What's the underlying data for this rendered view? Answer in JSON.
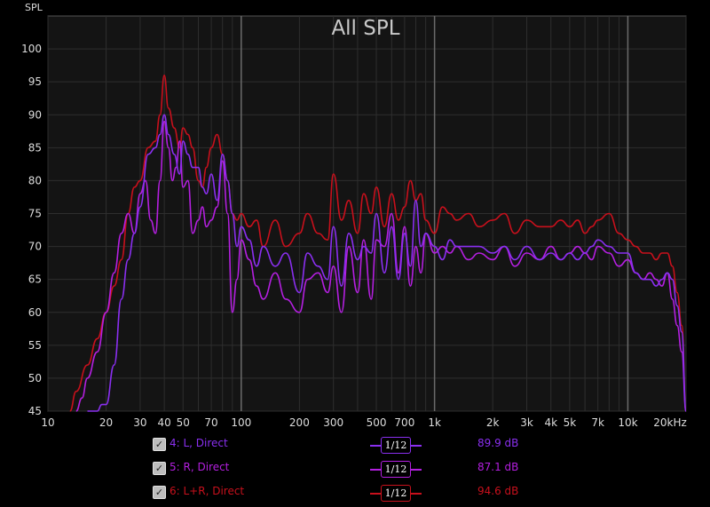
{
  "chart_data": {
    "type": "line",
    "title": "All SPL",
    "ylabel": "SPL",
    "xlabel": "",
    "xscale": "log",
    "xlim": [
      10,
      20000
    ],
    "ylim": [
      45,
      105
    ],
    "xticks": [
      10,
      20,
      30,
      40,
      50,
      70,
      100,
      200,
      300,
      500,
      700,
      1000,
      2000,
      3000,
      4000,
      5000,
      7000,
      10000,
      20000
    ],
    "xtick_labels": [
      "10",
      "20",
      "30",
      "40",
      "50",
      "70",
      "100",
      "200",
      "300",
      "500",
      "700",
      "1k",
      "2k",
      "3k",
      "4k",
      "5k",
      "7k",
      "10k",
      "20kHz"
    ],
    "yticks": [
      45,
      50,
      55,
      60,
      65,
      70,
      75,
      80,
      85,
      90,
      95,
      100
    ],
    "grid": true,
    "legend_position": "bottom",
    "series": [
      {
        "name": "4: L, Direct",
        "color": "#8a2ff0",
        "smoothing": "1/12",
        "value_label": "89.9 dB",
        "x": [
          16,
          18,
          19,
          20,
          22,
          24,
          26,
          28,
          30,
          33,
          36,
          38,
          40,
          42,
          45,
          48,
          50,
          53,
          56,
          60,
          63,
          66,
          70,
          75,
          80,
          85,
          90,
          95,
          100,
          110,
          120,
          130,
          150,
          170,
          200,
          220,
          250,
          280,
          300,
          330,
          360,
          400,
          430,
          470,
          500,
          550,
          600,
          650,
          700,
          750,
          800,
          850,
          900,
          1000,
          1100,
          1200,
          1300,
          1500,
          1700,
          2000,
          2300,
          2600,
          3000,
          3500,
          4000,
          4500,
          5000,
          5500,
          6000,
          6500,
          7000,
          8000,
          9000,
          10000,
          11000,
          12000,
          13000,
          14000,
          15000,
          16000,
          17000,
          18000,
          19000,
          20000
        ],
        "y": [
          45,
          45,
          46,
          46,
          52,
          62,
          68,
          72,
          76,
          84,
          85,
          87,
          90,
          87,
          84,
          81,
          86,
          84,
          82,
          82,
          79,
          78,
          81,
          77,
          84,
          80,
          75,
          70,
          73,
          71,
          67,
          70,
          67,
          69,
          63,
          69,
          67,
          65,
          73,
          64,
          72,
          68,
          70,
          69,
          75,
          66,
          73,
          65,
          72,
          67,
          77,
          70,
          72,
          70,
          68,
          71,
          70,
          70,
          70,
          69,
          70,
          68,
          70,
          68,
          69,
          68,
          69,
          68,
          69,
          70,
          71,
          70,
          69,
          69,
          66,
          65,
          65,
          64,
          65,
          66,
          65,
          61,
          57,
          45
        ]
      },
      {
        "name": "5: R, Direct",
        "color": "#b41fe0",
        "smoothing": "1/12",
        "value_label": "87.1 dB",
        "x": [
          14,
          15,
          16,
          18,
          20,
          22,
          24,
          26,
          28,
          30,
          32,
          34,
          36,
          38,
          40,
          42,
          44,
          46,
          48,
          50,
          53,
          56,
          60,
          63,
          66,
          70,
          75,
          80,
          85,
          90,
          95,
          100,
          110,
          120,
          130,
          150,
          170,
          200,
          220,
          250,
          280,
          300,
          330,
          360,
          400,
          430,
          470,
          500,
          550,
          600,
          650,
          700,
          750,
          800,
          850,
          900,
          1000,
          1100,
          1200,
          1300,
          1500,
          1700,
          2000,
          2300,
          2600,
          3000,
          3500,
          4000,
          4500,
          5000,
          5500,
          6000,
          6500,
          7000,
          8000,
          9000,
          10000,
          11000,
          12000,
          13000,
          14000,
          15000,
          16000,
          17000,
          18000,
          19000,
          20000
        ],
        "y": [
          45,
          47,
          50,
          54,
          60,
          66,
          72,
          75,
          72,
          78,
          80,
          74,
          72,
          80,
          89,
          85,
          80,
          82,
          86,
          79,
          80,
          72,
          74,
          76,
          73,
          74,
          76,
          83,
          75,
          60,
          65,
          71,
          68,
          64,
          62,
          66,
          62,
          60,
          65,
          66,
          63,
          67,
          60,
          70,
          63,
          71,
          62,
          71,
          70,
          75,
          66,
          73,
          64,
          70,
          66,
          72,
          69,
          70,
          69,
          70,
          68,
          69,
          68,
          70,
          67,
          69,
          68,
          70,
          68,
          69,
          70,
          69,
          68,
          70,
          69,
          67,
          68,
          66,
          65,
          66,
          65,
          64,
          66,
          62,
          58,
          54,
          45
        ]
      },
      {
        "name": "6: L+R, Direct",
        "color": "#c8101c",
        "smoothing": "1/12",
        "value_label": "94.6 dB",
        "x": [
          13,
          14,
          16,
          18,
          20,
          22,
          24,
          26,
          28,
          30,
          33,
          36,
          38,
          40,
          42,
          45,
          48,
          50,
          53,
          56,
          60,
          63,
          66,
          70,
          75,
          80,
          85,
          90,
          95,
          100,
          110,
          120,
          130,
          150,
          170,
          200,
          220,
          250,
          280,
          300,
          330,
          360,
          400,
          430,
          470,
          500,
          550,
          600,
          650,
          700,
          750,
          800,
          850,
          900,
          1000,
          1100,
          1200,
          1300,
          1500,
          1700,
          2000,
          2300,
          2600,
          3000,
          3500,
          4000,
          4500,
          5000,
          5500,
          6000,
          6500,
          7000,
          8000,
          9000,
          10000,
          11000,
          12000,
          13000,
          14000,
          15000,
          16000,
          17000,
          18000,
          19000,
          20000
        ],
        "y": [
          45,
          48,
          52,
          56,
          60,
          64,
          68,
          75,
          79,
          80,
          85,
          86,
          90,
          96,
          91,
          88,
          85,
          88,
          87,
          85,
          80,
          79,
          82,
          85,
          87,
          84,
          80,
          75,
          74,
          75,
          73,
          74,
          70,
          74,
          70,
          72,
          75,
          72,
          71,
          81,
          74,
          77,
          72,
          78,
          75,
          79,
          73,
          78,
          74,
          76,
          80,
          77,
          78,
          74,
          72,
          76,
          75,
          74,
          75,
          73,
          74,
          75,
          72,
          74,
          73,
          73,
          74,
          73,
          74,
          72,
          73,
          74,
          75,
          72,
          71,
          70,
          69,
          69,
          68,
          69,
          69,
          67,
          63,
          58,
          45
        ]
      }
    ]
  }
}
